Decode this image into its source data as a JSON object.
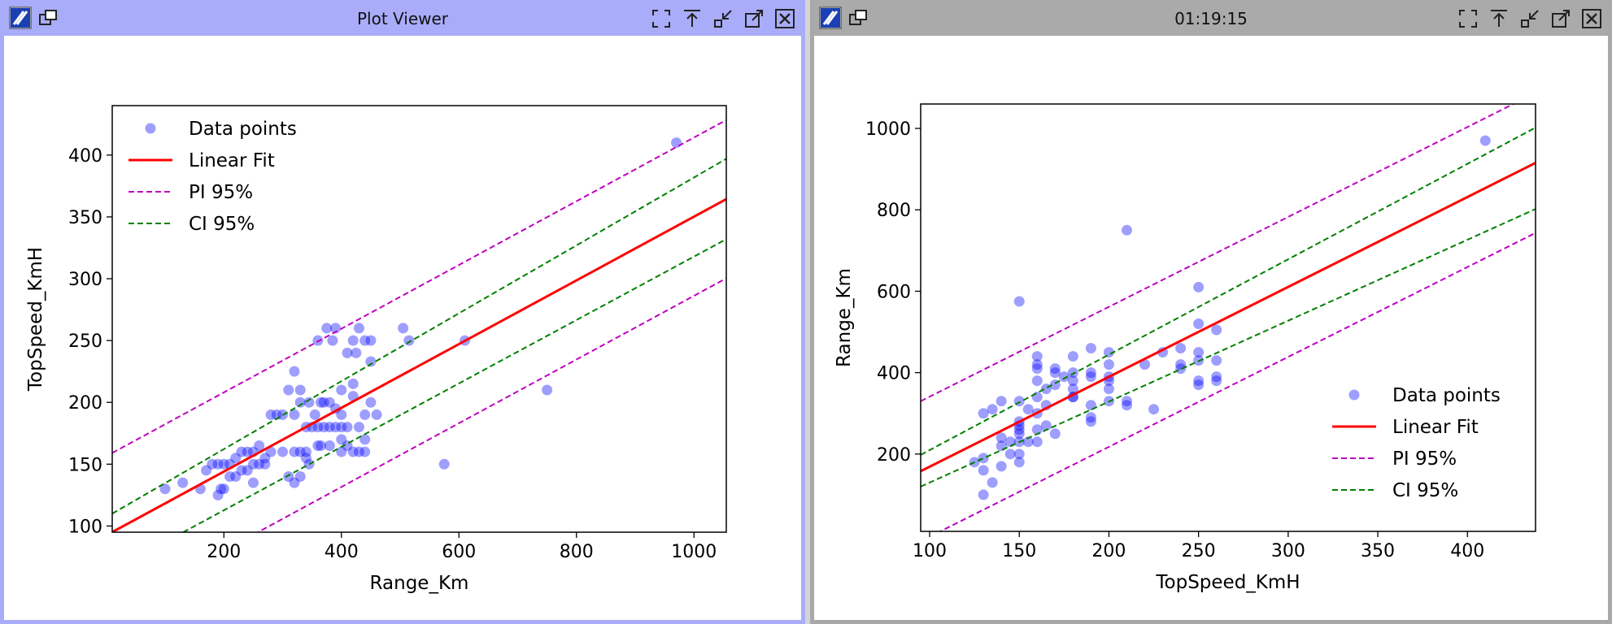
{
  "windows": [
    {
      "title": "Plot Viewer",
      "chart_data": {
        "type": "scatter",
        "xlabel": "Range_Km",
        "ylabel": "TopSpeed_KmH",
        "xlim": [
          10,
          1055
        ],
        "ylim": [
          95,
          440
        ],
        "xticks": [
          200,
          400,
          600,
          800,
          1000
        ],
        "yticks": [
          100,
          150,
          200,
          250,
          300,
          350,
          400
        ],
        "legend_position": "top-left",
        "legend": [
          "Data points",
          "Linear Fit",
          "PI 95%",
          "CI 95%"
        ],
        "colors": {
          "points": "#0000ff",
          "fit": "#ff0000",
          "pi": "#bf00bf",
          "ci": "#008000"
        },
        "fit": {
          "slope": 0.2577,
          "intercept": 92.5
        },
        "pi_offset": 64,
        "ci": {
          "upper_at_xmin": 110,
          "upper_at_xmax": 397,
          "lower_at_xmin": 64,
          "lower_at_xmax": 332
        },
        "points": [
          [
            970,
            410
          ],
          [
            750,
            210
          ],
          [
            575,
            150
          ],
          [
            610,
            250
          ],
          [
            505,
            260
          ],
          [
            515,
            250
          ],
          [
            430,
            260
          ],
          [
            440,
            250
          ],
          [
            450,
            250
          ],
          [
            420,
            250
          ],
          [
            390,
            260
          ],
          [
            375,
            260
          ],
          [
            360,
            250
          ],
          [
            385,
            250
          ],
          [
            410,
            240
          ],
          [
            425,
            240
          ],
          [
            320,
            225
          ],
          [
            450,
            233
          ],
          [
            420,
            215
          ],
          [
            400,
            210
          ],
          [
            420,
            205
          ],
          [
            450,
            200
          ],
          [
            440,
            190
          ],
          [
            460,
            190
          ],
          [
            400,
            190
          ],
          [
            390,
            195
          ],
          [
            380,
            200
          ],
          [
            370,
            200
          ],
          [
            365,
            200
          ],
          [
            355,
            190
          ],
          [
            345,
            200
          ],
          [
            330,
            200
          ],
          [
            310,
            210
          ],
          [
            330,
            210
          ],
          [
            280,
            190
          ],
          [
            290,
            190
          ],
          [
            300,
            190
          ],
          [
            320,
            190
          ],
          [
            340,
            180
          ],
          [
            350,
            180
          ],
          [
            360,
            180
          ],
          [
            370,
            180
          ],
          [
            380,
            180
          ],
          [
            390,
            180
          ],
          [
            400,
            180
          ],
          [
            410,
            180
          ],
          [
            430,
            180
          ],
          [
            440,
            170
          ],
          [
            410,
            165
          ],
          [
            380,
            165
          ],
          [
            365,
            165
          ],
          [
            340,
            160
          ],
          [
            330,
            160
          ],
          [
            320,
            160
          ],
          [
            300,
            160
          ],
          [
            280,
            160
          ],
          [
            270,
            155
          ],
          [
            250,
            160
          ],
          [
            240,
            160
          ],
          [
            230,
            160
          ],
          [
            220,
            155
          ],
          [
            210,
            150
          ],
          [
            200,
            150
          ],
          [
            190,
            150
          ],
          [
            180,
            150
          ],
          [
            170,
            145
          ],
          [
            250,
            150
          ],
          [
            260,
            150
          ],
          [
            270,
            150
          ],
          [
            240,
            145
          ],
          [
            230,
            145
          ],
          [
            220,
            140
          ],
          [
            210,
            140
          ],
          [
            250,
            135
          ],
          [
            320,
            135
          ],
          [
            330,
            140
          ],
          [
            310,
            140
          ],
          [
            195,
            130
          ],
          [
            160,
            130
          ],
          [
            130,
            135
          ],
          [
            100,
            130
          ],
          [
            190,
            125
          ],
          [
            345,
            150
          ],
          [
            420,
            160
          ],
          [
            440,
            160
          ],
          [
            430,
            160
          ],
          [
            400,
            160
          ],
          [
            360,
            165
          ],
          [
            260,
            165
          ],
          [
            340,
            155
          ],
          [
            400,
            170
          ],
          [
            200,
            130
          ]
        ]
      }
    },
    {
      "title": "01:19:15",
      "chart_data": {
        "type": "scatter",
        "xlabel": "TopSpeed_KmH",
        "ylabel": "Range_Km",
        "xlim": [
          95,
          438
        ],
        "ylim": [
          10,
          1060
        ],
        "xticks": [
          100,
          150,
          200,
          250,
          300,
          350,
          400
        ],
        "yticks": [
          200,
          400,
          600,
          800,
          1000
        ],
        "legend_position": "bottom-right",
        "legend": [
          "Data points",
          "Linear Fit",
          "PI 95%",
          "CI 95%"
        ],
        "colors": {
          "points": "#0000ff",
          "fit": "#ff0000",
          "pi": "#bf00bf",
          "ci": "#008000"
        },
        "fit": {
          "slope": 2.2085,
          "intercept": -52
        },
        "pi_offset": 172,
        "ci": {
          "upper_at_xmin": 198,
          "upper_at_xmax": 1002,
          "lower_at_xmin": 120,
          "lower_at_xmax": 802
        },
        "points": [
          [
            410,
            970
          ],
          [
            210,
            750
          ],
          [
            250,
            610
          ],
          [
            150,
            575
          ],
          [
            250,
            520
          ],
          [
            260,
            505
          ],
          [
            160,
            440
          ],
          [
            170,
            400
          ],
          [
            160,
            420
          ],
          [
            180,
            440
          ],
          [
            190,
            460
          ],
          [
            200,
            450
          ],
          [
            200,
            420
          ],
          [
            180,
            400
          ],
          [
            190,
            390
          ],
          [
            180,
            380
          ],
          [
            170,
            370
          ],
          [
            160,
            380
          ],
          [
            180,
            360
          ],
          [
            200,
            360
          ],
          [
            200,
            380
          ],
          [
            210,
            330
          ],
          [
            210,
            320
          ],
          [
            190,
            320
          ],
          [
            190,
            290
          ],
          [
            190,
            280
          ],
          [
            180,
            340
          ],
          [
            160,
            340
          ],
          [
            165,
            320
          ],
          [
            150,
            330
          ],
          [
            140,
            330
          ],
          [
            135,
            310
          ],
          [
            130,
            300
          ],
          [
            150,
            280
          ],
          [
            150,
            260
          ],
          [
            150,
            250
          ],
          [
            160,
            260
          ],
          [
            165,
            270
          ],
          [
            170,
            250
          ],
          [
            155,
            230
          ],
          [
            150,
            230
          ],
          [
            140,
            220
          ],
          [
            145,
            230
          ],
          [
            160,
            230
          ],
          [
            150,
            200
          ],
          [
            150,
            180
          ],
          [
            140,
            170
          ],
          [
            130,
            190
          ],
          [
            125,
            180
          ],
          [
            130,
            160
          ],
          [
            130,
            100
          ],
          [
            135,
            130
          ],
          [
            250,
            450
          ],
          [
            250,
            430
          ],
          [
            240,
            420
          ],
          [
            240,
            410
          ],
          [
            250,
            380
          ],
          [
            250,
            370
          ],
          [
            260,
            380
          ],
          [
            260,
            390
          ],
          [
            260,
            430
          ],
          [
            225,
            310
          ],
          [
            230,
            450
          ],
          [
            220,
            420
          ],
          [
            240,
            460
          ],
          [
            200,
            330
          ],
          [
            180,
            340
          ],
          [
            175,
            390
          ],
          [
            165,
            360
          ],
          [
            145,
            200
          ],
          [
            155,
            310
          ],
          [
            160,
            410
          ],
          [
            200,
            390
          ],
          [
            170,
            410
          ],
          [
            190,
            400
          ],
          [
            140,
            240
          ],
          [
            150,
            270
          ],
          [
            160,
            300
          ]
        ]
      }
    }
  ]
}
